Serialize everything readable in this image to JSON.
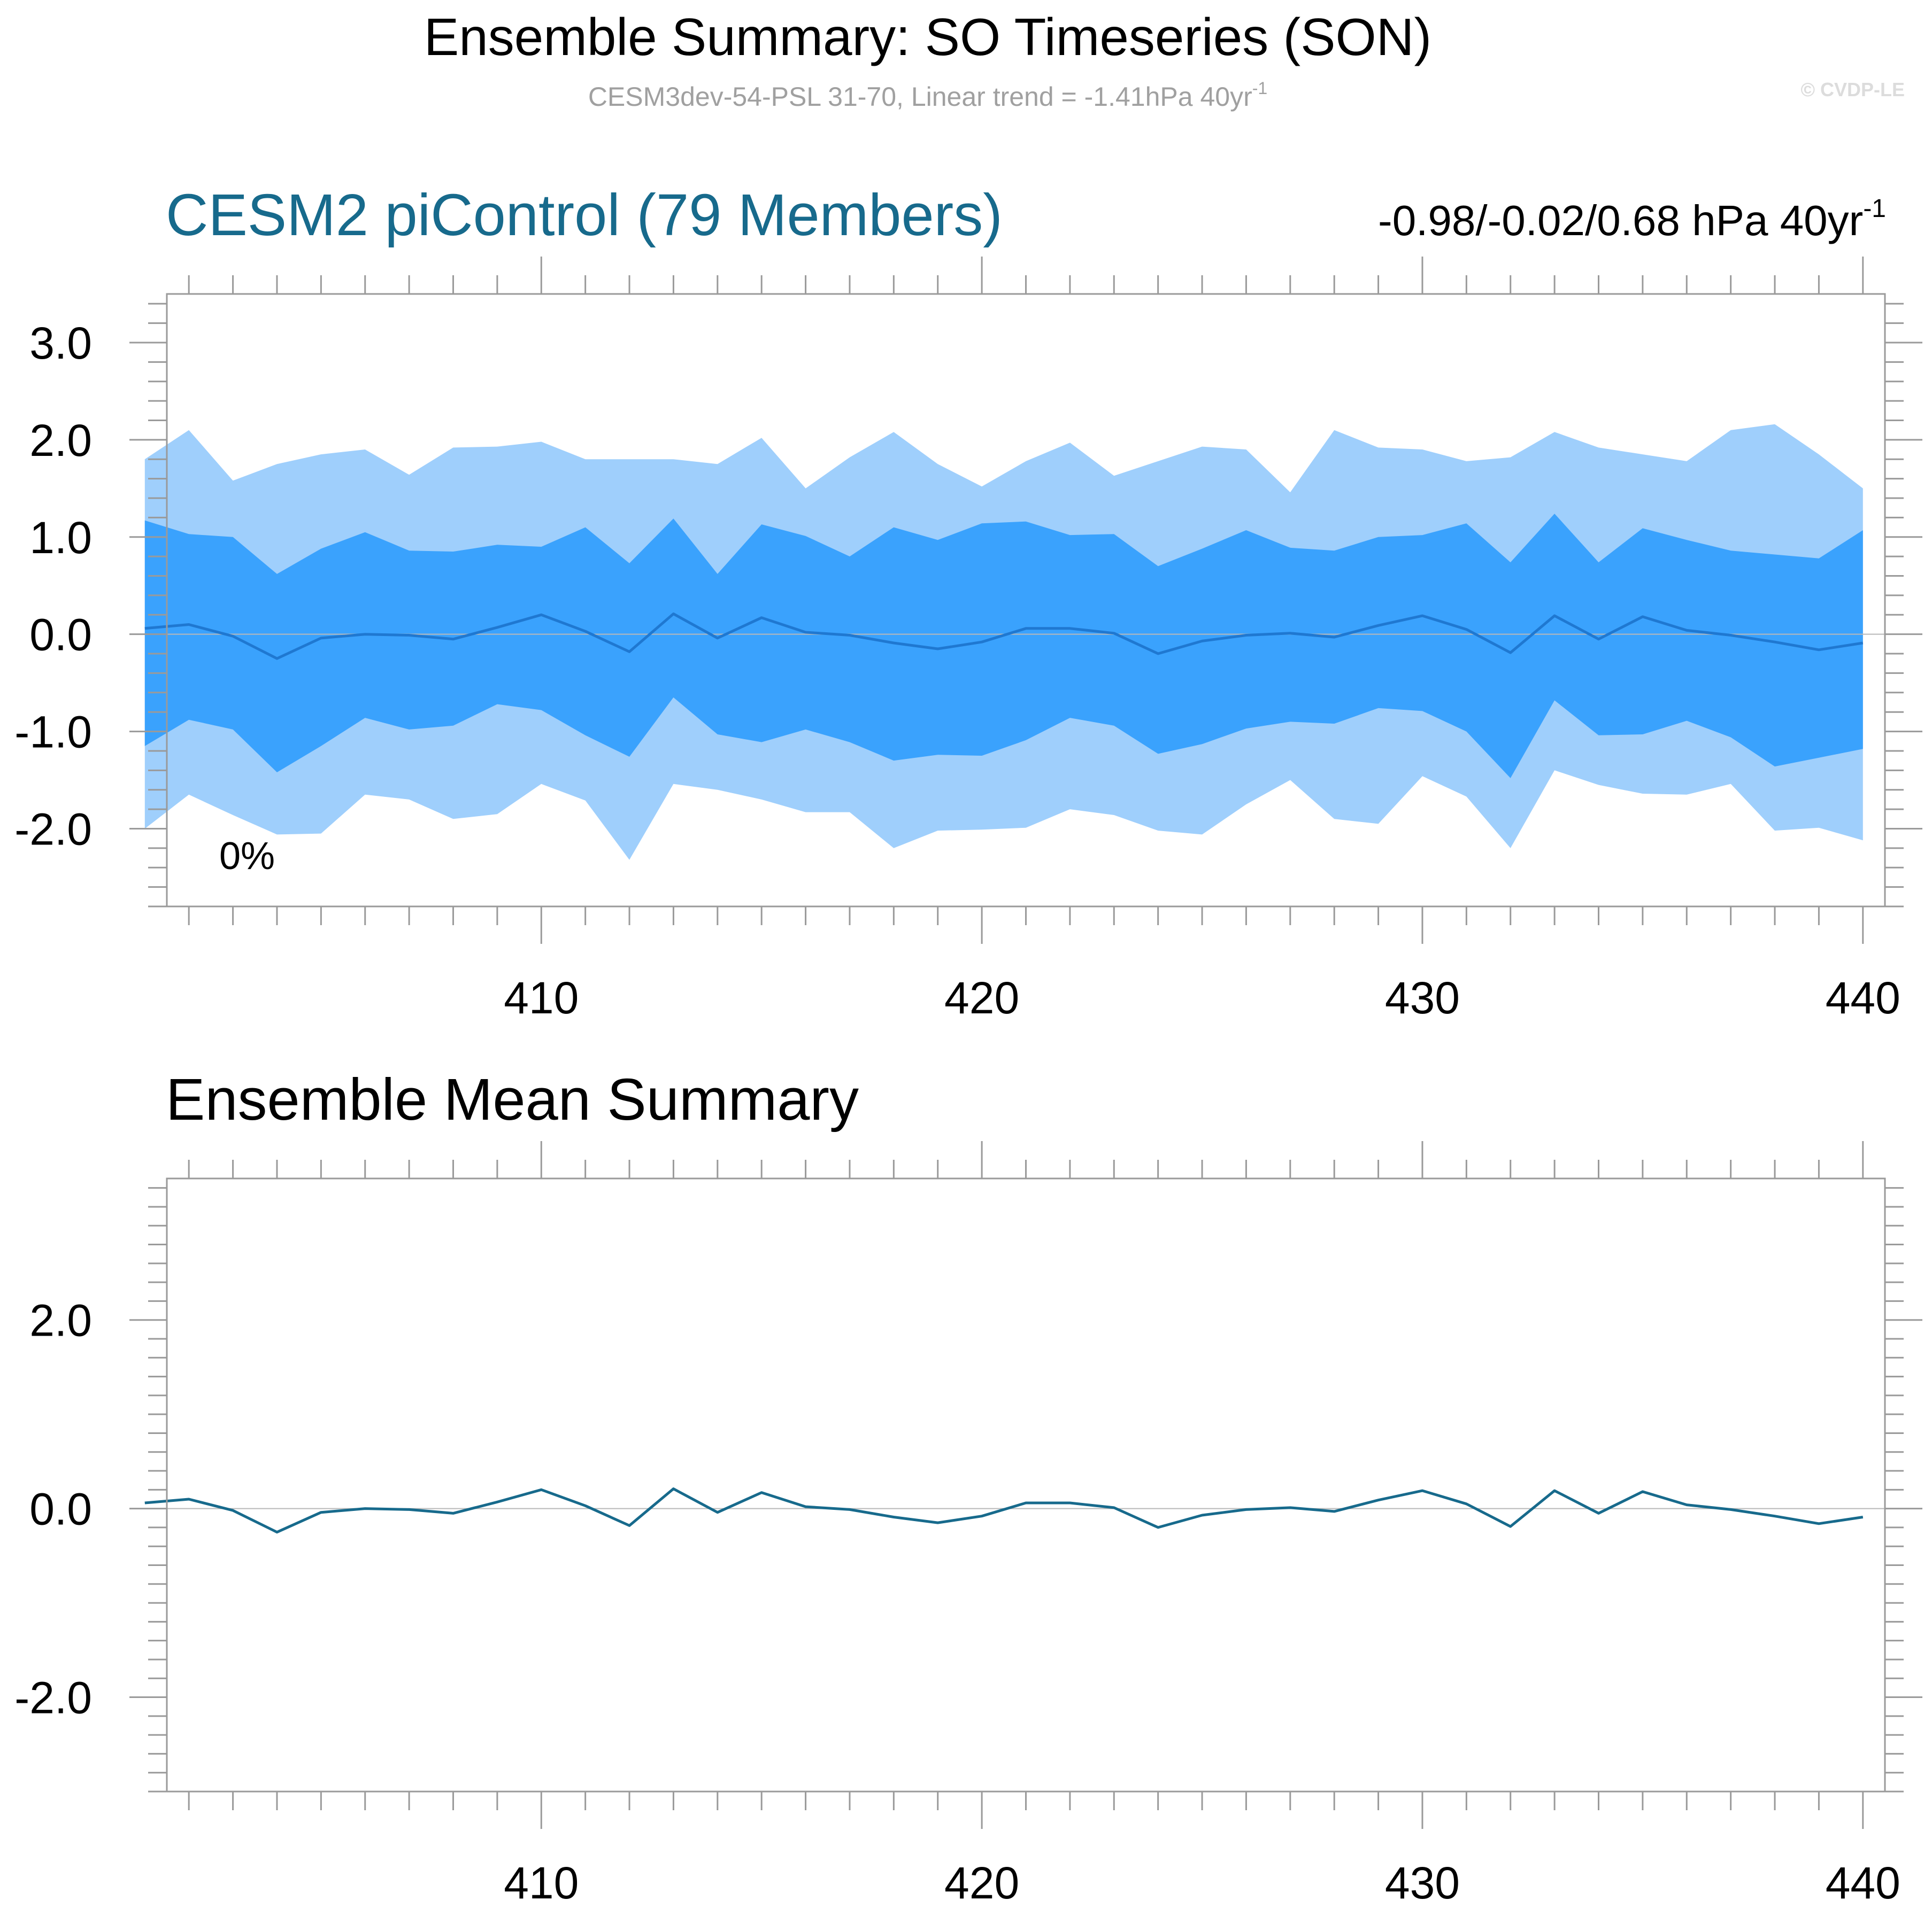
{
  "header": {
    "title": "Ensemble Summary: SO Timeseries (SON)",
    "subtitle": "CESM3dev-54-PSL 31-70, Linear trend = -1.41hPa 40yr",
    "subtitle_sup": "-1",
    "copyright": "© CVDP-LE"
  },
  "colors": {
    "outer_band": "#9fcffc",
    "inner_band": "#3aa2fd",
    "mean_line_top": "#1f78d1",
    "mean_line_bottom": "#176a8c",
    "panel_title": "#176a8c",
    "axis": "#9a9a9a"
  },
  "chart_data": [
    {
      "type": "area",
      "title": "CESM2 piControl (79 Members)",
      "right_label": "-0.98/-0.02/0.68 hPa 40yr",
      "right_label_sup": "-1",
      "annotation": "0%",
      "xlim": [
        401.5,
        440.5
      ],
      "ylim": [
        -2.8,
        3.5
      ],
      "x_ticks": [
        410,
        420,
        430,
        440
      ],
      "x_tick_labels": [
        "410",
        "420",
        "430",
        "440"
      ],
      "y_ticks": [
        3.0,
        2.0,
        1.0,
        0.0,
        -1.0,
        -2.0
      ],
      "y_tick_labels": [
        "3.0",
        "2.0",
        "1.0",
        "0.0",
        "-1.0",
        "-2.0"
      ],
      "x": [
        401,
        402,
        403,
        404,
        405,
        406,
        407,
        408,
        409,
        410,
        411,
        412,
        413,
        414,
        415,
        416,
        417,
        418,
        419,
        420,
        421,
        422,
        423,
        424,
        425,
        426,
        427,
        428,
        429,
        430,
        431,
        432,
        433,
        434,
        435,
        436,
        437,
        438,
        439,
        440
      ],
      "series": [
        {
          "role": "outer_upper",
          "values": [
            1.8,
            2.1,
            1.58,
            1.75,
            1.85,
            1.9,
            1.64,
            1.92,
            1.93,
            1.98,
            1.8,
            1.8,
            1.8,
            1.75,
            2.02,
            1.5,
            1.82,
            2.08,
            1.75,
            1.52,
            1.78,
            1.97,
            1.63,
            1.78,
            1.93,
            1.9,
            1.46,
            2.1,
            1.92,
            1.9,
            1.78,
            1.82,
            2.08,
            1.92,
            1.85,
            1.78,
            2.1,
            2.16,
            1.85,
            1.5
          ]
        },
        {
          "role": "inner_upper",
          "values": [
            1.17,
            1.03,
            1.0,
            0.62,
            0.88,
            1.05,
            0.86,
            0.85,
            0.92,
            0.9,
            1.1,
            0.73,
            1.19,
            0.62,
            1.13,
            1.01,
            0.8,
            1.1,
            0.97,
            1.14,
            1.16,
            1.02,
            1.03,
            0.7,
            0.88,
            1.07,
            0.89,
            0.86,
            1.0,
            1.02,
            1.14,
            0.74,
            1.24,
            0.74,
            1.09,
            0.97,
            0.86,
            0.82,
            0.78,
            1.07
          ]
        },
        {
          "role": "mean",
          "values": [
            0.06,
            0.1,
            -0.02,
            -0.25,
            -0.04,
            0.0,
            -0.01,
            -0.05,
            0.07,
            0.2,
            0.03,
            -0.18,
            0.21,
            -0.04,
            0.17,
            0.02,
            -0.01,
            -0.09,
            -0.15,
            -0.08,
            0.06,
            0.06,
            0.01,
            -0.2,
            -0.07,
            -0.01,
            0.01,
            -0.03,
            0.09,
            0.19,
            0.05,
            -0.19,
            0.19,
            -0.05,
            0.18,
            0.04,
            -0.01,
            -0.08,
            -0.16,
            -0.09
          ]
        },
        {
          "role": "inner_lower",
          "values": [
            -1.15,
            -0.88,
            -0.98,
            -1.42,
            -1.15,
            -0.86,
            -0.98,
            -0.94,
            -0.72,
            -0.78,
            -1.04,
            -1.26,
            -0.65,
            -1.03,
            -1.11,
            -0.98,
            -1.11,
            -1.3,
            -1.24,
            -1.25,
            -1.09,
            -0.86,
            -0.94,
            -1.23,
            -1.13,
            -0.97,
            -0.9,
            -0.92,
            -0.76,
            -0.79,
            -1.0,
            -1.48,
            -0.68,
            -1.04,
            -1.03,
            -0.89,
            -1.06,
            -1.36,
            -1.27,
            -1.18
          ]
        },
        {
          "role": "outer_lower",
          "values": [
            -2.0,
            -1.65,
            -1.86,
            -2.06,
            -2.05,
            -1.65,
            -1.7,
            -1.9,
            -1.85,
            -1.54,
            -1.71,
            -2.32,
            -1.54,
            -1.6,
            -1.7,
            -1.83,
            -1.83,
            -2.2,
            -2.02,
            -2.01,
            -1.99,
            -1.8,
            -1.86,
            -2.02,
            -2.06,
            -1.75,
            -1.5,
            -1.9,
            -1.95,
            -1.46,
            -1.67,
            -2.2,
            -1.4,
            -1.55,
            -1.64,
            -1.65,
            -1.54,
            -2.02,
            -1.99,
            -2.12
          ]
        }
      ]
    },
    {
      "type": "line",
      "title": "Ensemble Mean Summary",
      "xlim": [
        401.5,
        440.5
      ],
      "ylim": [
        -3.0,
        3.5
      ],
      "x_ticks": [
        410,
        420,
        430,
        440
      ],
      "x_tick_labels": [
        "410",
        "420",
        "430",
        "440"
      ],
      "y_ticks": [
        2.0,
        0.0,
        -2.0
      ],
      "y_tick_labels": [
        "2.0",
        "0.0",
        "-2.0"
      ],
      "x": [
        401,
        402,
        403,
        404,
        405,
        406,
        407,
        408,
        409,
        410,
        411,
        412,
        413,
        414,
        415,
        416,
        417,
        418,
        419,
        420,
        421,
        422,
        423,
        424,
        425,
        426,
        427,
        428,
        429,
        430,
        431,
        432,
        433,
        434,
        435,
        436,
        437,
        438,
        439,
        440
      ],
      "series": [
        {
          "role": "mean",
          "values": [
            0.06,
            0.1,
            -0.02,
            -0.25,
            -0.04,
            0.0,
            -0.01,
            -0.05,
            0.07,
            0.2,
            0.03,
            -0.18,
            0.21,
            -0.04,
            0.17,
            0.02,
            -0.01,
            -0.09,
            -0.15,
            -0.08,
            0.06,
            0.06,
            0.01,
            -0.2,
            -0.07,
            -0.01,
            0.01,
            -0.03,
            0.09,
            0.19,
            0.05,
            -0.19,
            0.19,
            -0.05,
            0.18,
            0.04,
            -0.01,
            -0.08,
            -0.16,
            -0.09
          ]
        }
      ]
    }
  ]
}
